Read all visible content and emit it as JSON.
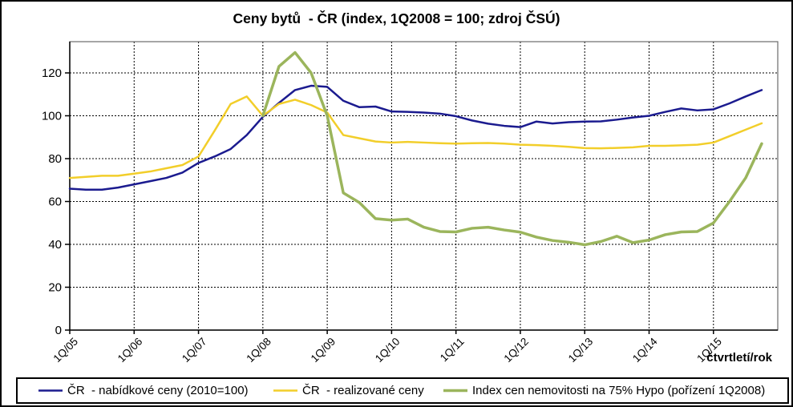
{
  "chart": {
    "title": "Ceny bytů  - ČR (index, 1Q2008 = 100; zdroj ČSÚ)",
    "x_axis_title": "čtvrtletí/rok"
  },
  "chart_data": {
    "type": "line",
    "title": "Ceny bytů  - ČR (index, 1Q2008 = 100; zdroj ČSÚ)",
    "xlabel": "čtvrtletí/rok",
    "ylabel": "",
    "ylim": [
      0,
      135
    ],
    "yticks": [
      0,
      20,
      40,
      60,
      80,
      100,
      120
    ],
    "xticks": [
      "1Q/05",
      "1Q/06",
      "1Q/07",
      "1Q/08",
      "1Q/09",
      "1Q/10",
      "1Q/11",
      "1Q/12",
      "1Q/13",
      "1Q/14",
      "1Q/15"
    ],
    "grid": true,
    "legend_position": "bottom",
    "x": [
      "1Q/05",
      "2Q/05",
      "3Q/05",
      "4Q/05",
      "1Q/06",
      "2Q/06",
      "3Q/06",
      "4Q/06",
      "1Q/07",
      "2Q/07",
      "3Q/07",
      "4Q/07",
      "1Q/08",
      "2Q/08",
      "3Q/08",
      "4Q/08",
      "1Q/09",
      "2Q/09",
      "3Q/09",
      "4Q/09",
      "1Q/10",
      "2Q/10",
      "3Q/10",
      "4Q/10",
      "1Q/11",
      "2Q/11",
      "3Q/11",
      "4Q/11",
      "1Q/12",
      "2Q/12",
      "3Q/12",
      "4Q/12",
      "1Q/13",
      "2Q/13",
      "3Q/13",
      "4Q/13",
      "1Q/14",
      "2Q/14",
      "3Q/14",
      "4Q/14",
      "1Q/15",
      "2Q/15",
      "3Q/15",
      "4Q/15"
    ],
    "series": [
      {
        "name": "ČR  - nabídkové ceny (2010=100)",
        "color": "#1B1B8F",
        "line_width": 2.5,
        "values": [
          66,
          65.5,
          65.5,
          66.5,
          68,
          69.5,
          71,
          73.5,
          78,
          81,
          84.5,
          91,
          99.5,
          106,
          112,
          114,
          113.5,
          107,
          104,
          104.3,
          102,
          101.8,
          101.5,
          101,
          99.8,
          97.8,
          96.3,
          95.3,
          94.7,
          97.3,
          96.4,
          97,
          97.3,
          97.4,
          98.2,
          99.2,
          100,
          101.8,
          103.4,
          102.5,
          103,
          105.8,
          109,
          112
        ]
      },
      {
        "name": "ČR  - realizované ceny",
        "color": "#F2CE2A",
        "line_width": 2.5,
        "values": [
          71,
          71.5,
          72,
          72,
          73,
          74,
          75.5,
          77,
          81,
          93,
          105.5,
          109,
          100,
          105.5,
          107.5,
          105,
          101.5,
          91,
          89.5,
          88,
          87.5,
          87.8,
          87.5,
          87.2,
          87,
          87.2,
          87.3,
          87,
          86.5,
          86.3,
          86,
          85.5,
          84.9,
          84.8,
          85,
          85.3,
          86,
          86,
          86.2,
          86.5,
          87.5,
          90.5,
          93.5,
          96.5
        ]
      },
      {
        "name": "Index cen nemovitosti na 75% Hypo (pořízení 1Q2008)",
        "color": "#9BB55C",
        "line_width": 3.5,
        "values": [
          null,
          null,
          null,
          null,
          null,
          null,
          null,
          null,
          null,
          null,
          null,
          null,
          100,
          123,
          129.5,
          120,
          100,
          64,
          59.5,
          52,
          51.3,
          51.8,
          48,
          46,
          45.8,
          47.5,
          48,
          46.7,
          45.7,
          43.4,
          41.8,
          41,
          39.8,
          41.3,
          43.8,
          40.8,
          42,
          44.5,
          45.8,
          46,
          50,
          60,
          71,
          87
        ]
      }
    ]
  }
}
